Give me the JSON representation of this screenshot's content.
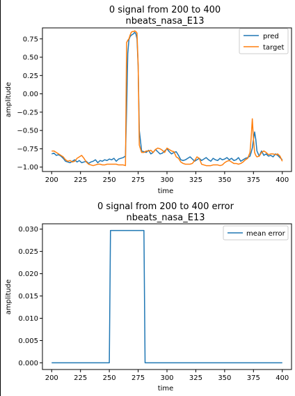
{
  "chart_data": [
    {
      "type": "line",
      "title": "0 signal from 200 to 400",
      "subtitle": "nbeats_nasa_E13",
      "xlabel": "time",
      "ylabel": "amplitude",
      "xlim": [
        192,
        408
      ],
      "ylim": [
        -1.06,
        0.9
      ],
      "xticks": [
        200,
        225,
        250,
        275,
        300,
        325,
        350,
        375,
        400
      ],
      "yticks": [
        -1.0,
        -0.75,
        -0.5,
        -0.25,
        0.0,
        0.25,
        0.5,
        0.75
      ],
      "ytick_labels": [
        "−1.00",
        "−0.75",
        "−0.50",
        "−0.25",
        "0.00",
        "0.25",
        "0.50",
        "0.75"
      ],
      "grid": false,
      "legend_position": "top-right",
      "colors": {
        "pred": "#1f77b4",
        "target": "#ff7f0e"
      },
      "series": [
        {
          "name": "pred",
          "x": [
            200,
            202,
            204,
            206,
            208,
            210,
            212,
            214,
            216,
            218,
            220,
            222,
            224,
            226,
            228,
            230,
            232,
            234,
            236,
            238,
            240,
            242,
            244,
            246,
            248,
            250,
            252,
            254,
            256,
            258,
            260,
            262,
            264,
            265,
            266,
            267,
            268,
            269,
            270,
            271,
            272,
            273,
            274,
            275,
            276,
            278,
            280,
            282,
            284,
            286,
            288,
            290,
            292,
            294,
            296,
            298,
            300,
            302,
            304,
            306,
            308,
            310,
            312,
            314,
            316,
            318,
            320,
            322,
            324,
            326,
            328,
            330,
            332,
            334,
            336,
            338,
            340,
            342,
            344,
            346,
            348,
            350,
            352,
            354,
            356,
            358,
            360,
            362,
            364,
            366,
            368,
            370,
            372,
            373,
            374,
            375,
            376,
            377,
            378,
            380,
            382,
            384,
            386,
            388,
            390,
            392,
            394,
            396,
            398,
            400
          ],
          "values": [
            -0.82,
            -0.81,
            -0.84,
            -0.83,
            -0.85,
            -0.88,
            -0.92,
            -0.93,
            -0.94,
            -0.92,
            -0.9,
            -0.93,
            -0.91,
            -0.94,
            -0.93,
            -0.92,
            -0.95,
            -0.93,
            -0.92,
            -0.9,
            -0.94,
            -0.91,
            -0.92,
            -0.9,
            -0.91,
            -0.89,
            -0.9,
            -0.88,
            -0.92,
            -0.89,
            -0.88,
            -0.87,
            -0.85,
            -0.2,
            0.55,
            0.74,
            0.78,
            0.8,
            0.81,
            0.82,
            0.84,
            0.82,
            0.75,
            0.38,
            -0.5,
            -0.78,
            -0.79,
            -0.8,
            -0.77,
            -0.82,
            -0.8,
            -0.76,
            -0.79,
            -0.82,
            -0.81,
            -0.78,
            -0.75,
            -0.79,
            -0.82,
            -0.8,
            -0.79,
            -0.84,
            -0.9,
            -0.91,
            -0.9,
            -0.88,
            -0.86,
            -0.89,
            -0.92,
            -0.9,
            -0.88,
            -0.91,
            -0.89,
            -0.87,
            -0.9,
            -0.92,
            -0.88,
            -0.9,
            -0.91,
            -0.88,
            -0.9,
            -0.89,
            -0.87,
            -0.9,
            -0.88,
            -0.91,
            -0.9,
            -0.87,
            -0.92,
            -0.9,
            -0.88,
            -0.87,
            -0.85,
            -0.8,
            -0.74,
            -0.62,
            -0.52,
            -0.62,
            -0.78,
            -0.85,
            -0.78,
            -0.84,
            -0.82,
            -0.85,
            -0.84,
            -0.86,
            -0.82,
            -0.84,
            -0.87,
            -0.9
          ]
        },
        {
          "name": "target",
          "x": [
            200,
            202,
            204,
            206,
            208,
            210,
            212,
            214,
            216,
            218,
            220,
            222,
            224,
            226,
            228,
            230,
            232,
            234,
            236,
            238,
            240,
            242,
            244,
            246,
            248,
            250,
            252,
            254,
            256,
            258,
            260,
            262,
            264,
            265,
            266,
            267,
            268,
            269,
            270,
            271,
            272,
            273,
            274,
            275,
            276,
            278,
            280,
            282,
            284,
            286,
            288,
            290,
            292,
            294,
            296,
            298,
            300,
            302,
            304,
            306,
            308,
            310,
            312,
            314,
            316,
            318,
            320,
            322,
            324,
            326,
            328,
            330,
            332,
            334,
            336,
            338,
            340,
            342,
            344,
            346,
            348,
            350,
            352,
            354,
            356,
            358,
            360,
            362,
            364,
            366,
            368,
            370,
            372,
            373,
            374,
            375,
            376,
            377,
            378,
            380,
            382,
            384,
            386,
            388,
            390,
            392,
            394,
            396,
            398,
            400
          ],
          "values": [
            -0.78,
            -0.78,
            -0.8,
            -0.82,
            -0.84,
            -0.86,
            -0.9,
            -0.92,
            -0.91,
            -0.93,
            -0.92,
            -0.88,
            -0.86,
            -0.84,
            -0.88,
            -0.93,
            -0.96,
            -0.97,
            -0.98,
            -0.97,
            -0.96,
            -0.96,
            -0.97,
            -0.97,
            -0.96,
            -0.96,
            -0.96,
            -0.96,
            -0.96,
            -0.97,
            -0.97,
            -0.97,
            -0.98,
            0.7,
            0.73,
            0.75,
            0.8,
            0.84,
            0.85,
            0.85,
            0.86,
            0.85,
            0.83,
            0.4,
            -0.7,
            -0.8,
            -0.8,
            -0.78,
            -0.78,
            -0.77,
            -0.8,
            -0.76,
            -0.74,
            -0.75,
            -0.77,
            -0.8,
            -0.74,
            -0.76,
            -0.78,
            -0.79,
            -0.86,
            -0.88,
            -0.93,
            -0.95,
            -0.96,
            -0.96,
            -0.96,
            -0.95,
            -0.91,
            -0.86,
            -0.88,
            -0.96,
            -0.97,
            -0.98,
            -0.98,
            -0.98,
            -0.97,
            -0.97,
            -0.97,
            -0.98,
            -0.97,
            -0.94,
            -0.92,
            -0.91,
            -0.93,
            -0.95,
            -0.95,
            -0.96,
            -0.95,
            -0.93,
            -0.9,
            -0.88,
            -0.8,
            -0.6,
            -0.34,
            -0.62,
            -0.8,
            -0.84,
            -0.86,
            -0.85,
            -0.8,
            -0.78,
            -0.8,
            -0.83,
            -0.82,
            -0.82,
            -0.83,
            -0.82,
            -0.85,
            -0.92
          ]
        }
      ]
    },
    {
      "type": "line",
      "title": "0 signal from 200 to 400  error",
      "subtitle": "nbeats_nasa_E13",
      "xlabel": "time",
      "ylabel": "amplitude",
      "xlim": [
        192,
        408
      ],
      "ylim": [
        -0.0015,
        0.0312
      ],
      "xticks": [
        200,
        225,
        250,
        275,
        300,
        325,
        350,
        375,
        400
      ],
      "yticks": [
        0.0,
        0.005,
        0.01,
        0.015,
        0.02,
        0.025,
        0.03
      ],
      "ytick_labels": [
        "0.000",
        "0.005",
        "0.010",
        "0.015",
        "0.020",
        "0.025",
        "0.030"
      ],
      "grid": false,
      "legend_position": "top-right",
      "colors": {
        "mean error": "#1f77b4"
      },
      "series": [
        {
          "name": "mean error",
          "x": [
            200,
            250,
            251,
            280,
            281,
            400
          ],
          "values": [
            0.0,
            0.0,
            0.0297,
            0.0297,
            0.0,
            0.0
          ]
        }
      ]
    }
  ]
}
